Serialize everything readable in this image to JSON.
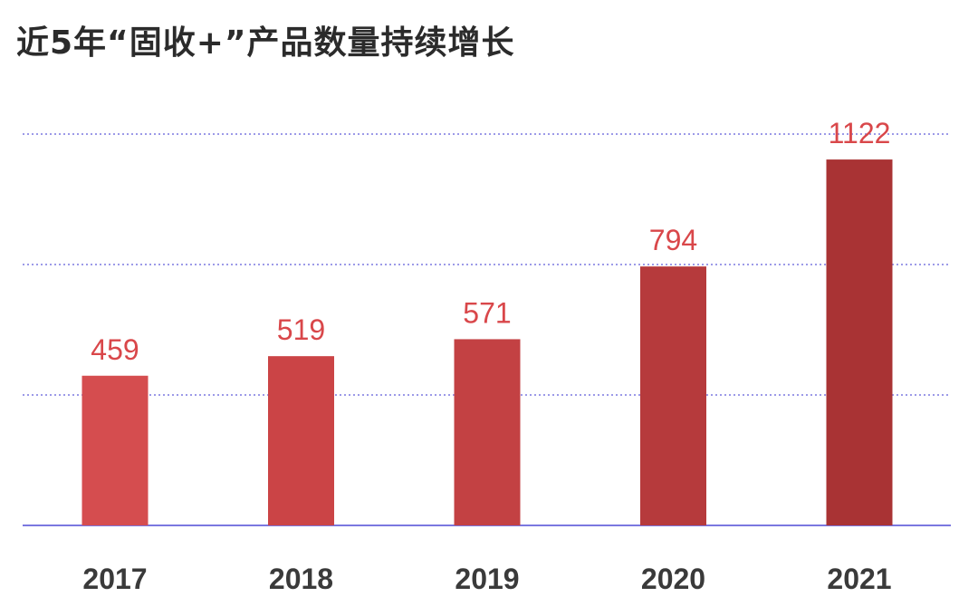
{
  "chart_data": {
    "type": "bar",
    "title": "近5年“固收+”产品数量持续增长",
    "categories": [
      "2017",
      "2018",
      "2019",
      "2020",
      "2021"
    ],
    "values": [
      459,
      519,
      571,
      794,
      1122
    ],
    "xlabel": "",
    "ylabel": "",
    "ylim": [
      0,
      1200
    ],
    "grid": true,
    "bar_colors": [
      "#d54d4f",
      "#cb4446",
      "#c34143",
      "#b63a3c",
      "#a93334"
    ],
    "value_label_color": "#d9474a",
    "grid_color": "#7b78e0"
  }
}
